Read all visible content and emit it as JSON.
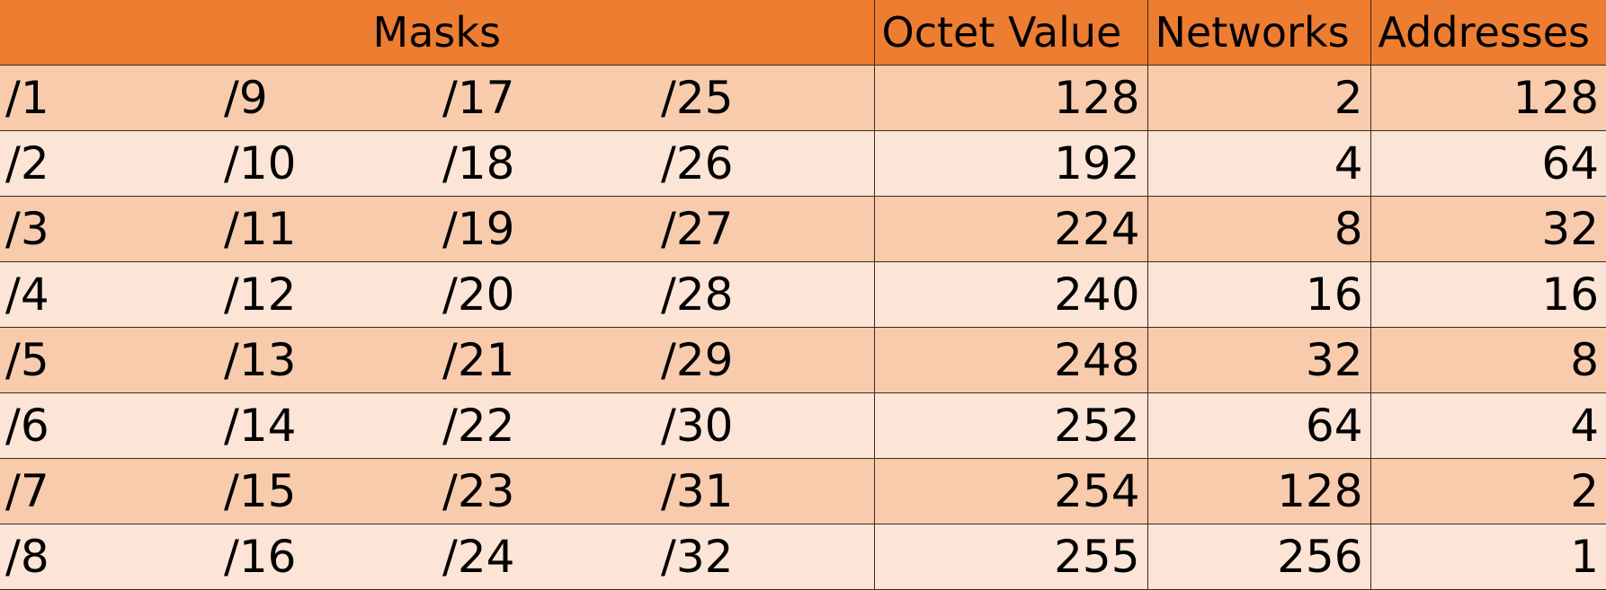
{
  "headers": {
    "masks": "Masks",
    "octet_value": "Octet Value",
    "networks": "Networks",
    "addresses": "Addresses"
  },
  "rows": [
    {
      "m1": "/1",
      "m2": "/9",
      "m3": "/17",
      "m4": "/25",
      "octet": "128",
      "networks": "2",
      "addresses": "128"
    },
    {
      "m1": "/2",
      "m2": "/10",
      "m3": "/18",
      "m4": "/26",
      "octet": "192",
      "networks": "4",
      "addresses": "64"
    },
    {
      "m1": "/3",
      "m2": "/11",
      "m3": "/19",
      "m4": "/27",
      "octet": "224",
      "networks": "8",
      "addresses": "32"
    },
    {
      "m1": "/4",
      "m2": "/12",
      "m3": "/20",
      "m4": "/28",
      "octet": "240",
      "networks": "16",
      "addresses": "16"
    },
    {
      "m1": "/5",
      "m2": "/13",
      "m3": "/21",
      "m4": "/29",
      "octet": "248",
      "networks": "32",
      "addresses": "8"
    },
    {
      "m1": "/6",
      "m2": "/14",
      "m3": "/22",
      "m4": "/30",
      "octet": "252",
      "networks": "64",
      "addresses": "4"
    },
    {
      "m1": "/7",
      "m2": "/15",
      "m3": "/23",
      "m4": "/31",
      "octet": "254",
      "networks": "128",
      "addresses": "2"
    },
    {
      "m1": "/8",
      "m2": "/16",
      "m3": "/24",
      "m4": "/32",
      "octet": "255",
      "networks": "256",
      "addresses": "1"
    }
  ],
  "colors": {
    "header": "#ED7D31",
    "band_dark": "#F8CBAD",
    "band_light": "#FCE4D6",
    "border": "#3a2a1a"
  }
}
